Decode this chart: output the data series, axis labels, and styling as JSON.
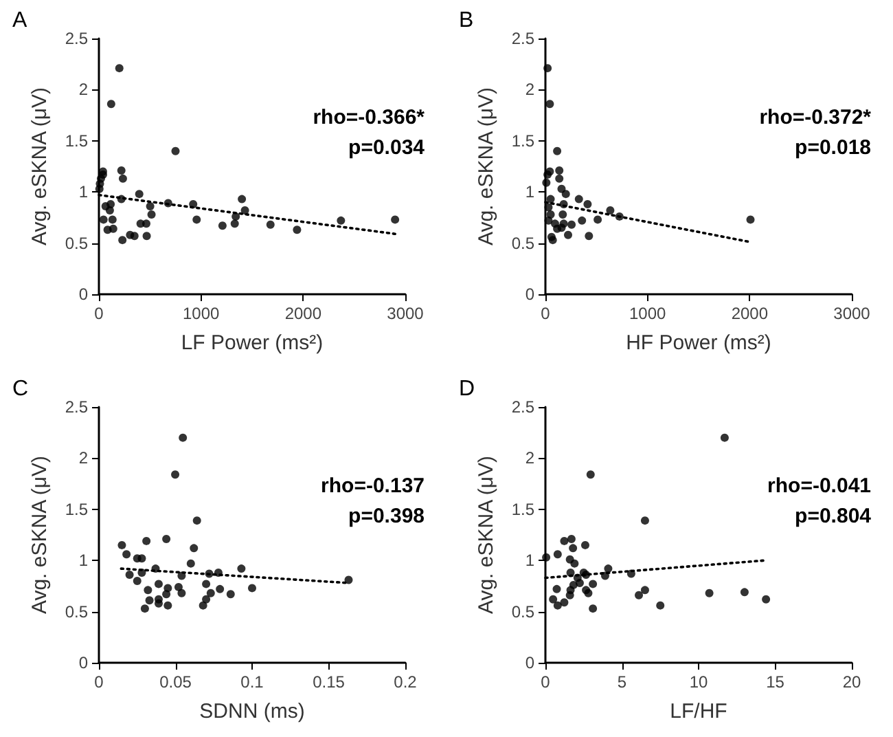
{
  "chart_data": [
    {
      "type": "scatter",
      "title": "A",
      "xlabel": "LF Power (ms²)",
      "ylabel": "Avg. eSKNA (μV)",
      "annotations": [
        "rho=-0.366*",
        "p=0.034"
      ],
      "xlim": [
        0,
        3000
      ],
      "xticks": [
        0,
        1000,
        2000,
        3000
      ],
      "ylim": [
        0,
        2.5
      ],
      "yticks": [
        0,
        0.5,
        1,
        1.5,
        2,
        2.5
      ],
      "grid": false,
      "marker": "circle",
      "series": [
        {
          "type": "scatter",
          "color": "#000000",
          "x": [
            200,
            120,
            750,
            40,
            40,
            20,
            10,
            5,
            220,
            235,
            220,
            395,
            65,
            115,
            107,
            45,
            133,
            85,
            140,
            230,
            305,
            348,
            468,
            408,
            464,
            502,
            515,
            678,
            923,
            957,
            1210,
            1330,
            1340,
            1400,
            1430,
            1680,
            1940,
            2370,
            2900
          ],
          "values": [
            2.21,
            1.86,
            1.4,
            1.2,
            1.17,
            1.13,
            1.08,
            1.03,
            1.21,
            1.13,
            0.93,
            0.98,
            0.86,
            0.88,
            0.82,
            0.73,
            0.73,
            0.63,
            0.64,
            0.53,
            0.58,
            0.57,
            0.57,
            0.69,
            0.69,
            0.86,
            0.78,
            0.89,
            0.88,
            0.73,
            0.67,
            0.69,
            0.76,
            0.93,
            0.82,
            0.68,
            0.63,
            0.72,
            0.73
          ]
        },
        {
          "type": "line",
          "color": "#000000",
          "line_style": "dotted",
          "marker": "none",
          "x": [
            0,
            2900
          ],
          "values": [
            0.97,
            0.59
          ]
        }
      ]
    },
    {
      "type": "scatter",
      "title": "B",
      "xlabel": "HF Power (ms²)",
      "ylabel": "Avg. eSKNA (μV)",
      "annotations": [
        "rho=-0.372*",
        "p=0.018"
      ],
      "xlim": [
        0,
        3000
      ],
      "xticks": [
        0,
        1000,
        2000,
        3000
      ],
      "ylim": [
        0,
        2.5
      ],
      "yticks": [
        0,
        0.5,
        1,
        1.5,
        2,
        2.5
      ],
      "grid": false,
      "marker": "circle",
      "series": [
        {
          "type": "scatter",
          "color": "#000000",
          "x": [
            21,
            43,
            115,
            43,
            21,
            136,
            136,
            9,
            158,
            200,
            51,
            328,
            413,
            179,
            30,
            51,
            170,
            635,
            725,
            358,
            512,
            2008,
            30,
            94,
            179,
            256,
            158,
            222,
            60,
            72,
            426,
            115
          ],
          "values": [
            2.21,
            1.86,
            1.4,
            1.2,
            1.17,
            1.21,
            1.13,
            1.09,
            1.03,
            0.98,
            0.93,
            0.93,
            0.88,
            0.88,
            0.85,
            0.78,
            0.78,
            0.82,
            0.76,
            0.72,
            0.73,
            0.73,
            0.72,
            0.69,
            0.69,
            0.68,
            0.65,
            0.58,
            0.56,
            0.53,
            0.57,
            0.64
          ]
        },
        {
          "type": "line",
          "color": "#000000",
          "line_style": "dotted",
          "marker": "none",
          "x": [
            0,
            2008
          ],
          "values": [
            0.9,
            0.51
          ]
        }
      ]
    },
    {
      "type": "scatter",
      "title": "C",
      "xlabel": "SDNN (ms)",
      "ylabel": "Avg. eSKNA (μV)",
      "annotations": [
        "rho=-0.137",
        "p=0.398"
      ],
      "xlim": [
        0,
        0.2
      ],
      "xticks": [
        0,
        0.05,
        0.1,
        0.15,
        0.2
      ],
      "ylim": [
        0,
        2.5
      ],
      "yticks": [
        0,
        0.5,
        1,
        1.5,
        2,
        2.5
      ],
      "grid": false,
      "marker": "circle",
      "series": [
        {
          "type": "scatter",
          "color": "#000000",
          "x": [
            0.0548,
            0.0498,
            0.064,
            0.015,
            0.031,
            0.044,
            0.062,
            0.018,
            0.025,
            0.028,
            0.06,
            0.02,
            0.028,
            0.025,
            0.037,
            0.054,
            0.072,
            0.078,
            0.093,
            0.032,
            0.039,
            0.045,
            0.052,
            0.07,
            0.044,
            0.054,
            0.073,
            0.079,
            0.086,
            0.1,
            0.163,
            0.033,
            0.039,
            0.039,
            0.045,
            0.03,
            0.068,
            0.07
          ],
          "values": [
            2.2,
            1.84,
            1.39,
            1.15,
            1.19,
            1.21,
            1.12,
            1.06,
            1.02,
            1.02,
            0.97,
            0.86,
            0.88,
            0.8,
            0.92,
            0.85,
            0.87,
            0.88,
            0.92,
            0.71,
            0.77,
            0.73,
            0.74,
            0.77,
            0.67,
            0.68,
            0.68,
            0.72,
            0.67,
            0.73,
            0.81,
            0.61,
            0.62,
            0.58,
            0.56,
            0.53,
            0.56,
            0.62
          ]
        },
        {
          "type": "line",
          "color": "#000000",
          "line_style": "dotted",
          "marker": "none",
          "x": [
            0.0145,
            0.163
          ],
          "values": [
            0.92,
            0.78
          ]
        }
      ]
    },
    {
      "type": "scatter",
      "title": "D",
      "xlabel": "LF/HF",
      "ylabel": "Avg. eSKNA (μV)",
      "annotations": [
        "rho=-0.041",
        "p=0.804"
      ],
      "xlim": [
        0,
        20
      ],
      "xticks": [
        0,
        5,
        10,
        15,
        20
      ],
      "ylim": [
        0,
        2.5
      ],
      "yticks": [
        0,
        0.5,
        1,
        1.5,
        2,
        2.5
      ],
      "grid": false,
      "marker": "circle",
      "series": [
        {
          "type": "scatter",
          "color": "#000000",
          "x": [
            11.7,
            2.95,
            6.5,
            0.05,
            0.8,
            1.23,
            1.7,
            1.8,
            2.6,
            1.6,
            1.9,
            1.64,
            2.5,
            2.65,
            4.1,
            3.9,
            5.6,
            2.1,
            2.24,
            3.1,
            1.83,
            0.74,
            1.64,
            2.65,
            2.8,
            1.6,
            6.5,
            6.1,
            10.7,
            13,
            14.4,
            7.5,
            3.1,
            0.5,
            0.8,
            1.23
          ],
          "values": [
            2.2,
            1.84,
            1.39,
            1.03,
            1.06,
            1.19,
            1.21,
            1.12,
            1.15,
            1.01,
            0.97,
            0.88,
            0.88,
            0.86,
            0.92,
            0.85,
            0.87,
            0.83,
            0.78,
            0.77,
            0.76,
            0.72,
            0.71,
            0.71,
            0.68,
            0.66,
            0.71,
            0.66,
            0.68,
            0.69,
            0.62,
            0.56,
            0.53,
            0.62,
            0.56,
            0.59
          ]
        },
        {
          "type": "line",
          "color": "#000000",
          "line_style": "dotted",
          "marker": "none",
          "x": [
            0,
            14.3
          ],
          "values": [
            0.83,
            1.0
          ]
        }
      ]
    }
  ]
}
